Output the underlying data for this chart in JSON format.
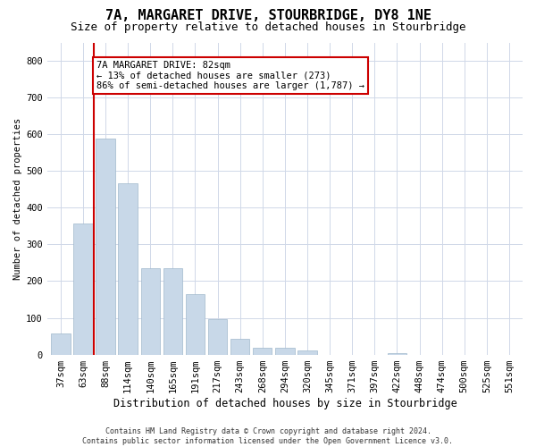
{
  "title": "7A, MARGARET DRIVE, STOURBRIDGE, DY8 1NE",
  "subtitle": "Size of property relative to detached houses in Stourbridge",
  "xlabel": "Distribution of detached houses by size in Stourbridge",
  "ylabel": "Number of detached properties",
  "categories": [
    "37sqm",
    "63sqm",
    "88sqm",
    "114sqm",
    "140sqm",
    "165sqm",
    "191sqm",
    "217sqm",
    "243sqm",
    "268sqm",
    "294sqm",
    "320sqm",
    "345sqm",
    "371sqm",
    "397sqm",
    "422sqm",
    "448sqm",
    "474sqm",
    "500sqm",
    "525sqm",
    "551sqm"
  ],
  "values": [
    57,
    357,
    588,
    467,
    236,
    236,
    165,
    96,
    44,
    18,
    18,
    12,
    0,
    0,
    0,
    5,
    0,
    0,
    0,
    0,
    0
  ],
  "bar_color": "#c8d8e8",
  "bar_edge_color": "#a0b8cc",
  "grid_color": "#d0d8e8",
  "background_color": "#ffffff",
  "vline_color": "#cc0000",
  "annotation_line1": "7A MARGARET DRIVE: 82sqm",
  "annotation_line2": "← 13% of detached houses are smaller (273)",
  "annotation_line3": "86% of semi-detached houses are larger (1,787) →",
  "annotation_box_color": "#ffffff",
  "annotation_box_edge_color": "#cc0000",
  "ylim": [
    0,
    850
  ],
  "yticks": [
    0,
    100,
    200,
    300,
    400,
    500,
    600,
    700,
    800
  ],
  "footer_line1": "Contains HM Land Registry data © Crown copyright and database right 2024.",
  "footer_line2": "Contains public sector information licensed under the Open Government Licence v3.0.",
  "title_fontsize": 11,
  "subtitle_fontsize": 9,
  "tick_fontsize": 7.5,
  "ylabel_fontsize": 7.5,
  "xlabel_fontsize": 8.5,
  "annotation_fontsize": 7.5,
  "footer_fontsize": 6
}
